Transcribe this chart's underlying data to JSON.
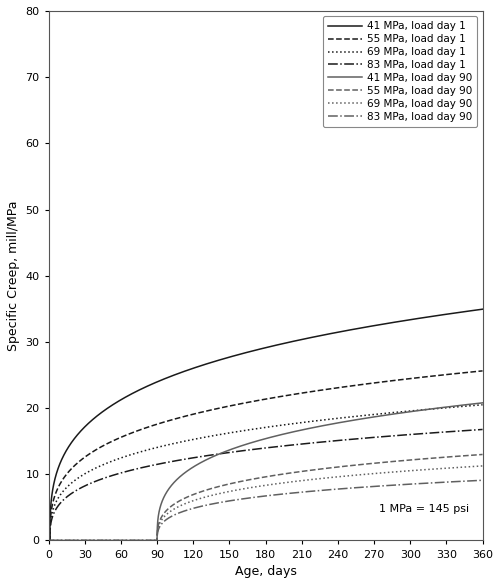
{
  "xlabel": "Age, days",
  "ylabel": "Specific Creep, mill/MPa",
  "xlim": [
    0,
    360
  ],
  "ylim": [
    0,
    80
  ],
  "xticks": [
    0,
    30,
    60,
    90,
    120,
    150,
    180,
    210,
    240,
    270,
    300,
    330,
    360
  ],
  "yticks": [
    0,
    10,
    20,
    30,
    40,
    50,
    60,
    70,
    80
  ],
  "annotation": "1 MPa = 145 psi",
  "curves": [
    {
      "label": "41 MPa, load day 1",
      "load_day": 1,
      "A": 75.0,
      "p": 0.35,
      "B": 0.08,
      "color": "#1a1a1a",
      "linestyle": "-",
      "linewidth": 1.1
    },
    {
      "label": "55 MPa, load day 1",
      "load_day": 1,
      "A": 55.0,
      "p": 0.35,
      "B": 0.08,
      "color": "#1a1a1a",
      "linestyle": "--",
      "linewidth": 1.1
    },
    {
      "label": "69 MPa, load day 1",
      "load_day": 1,
      "A": 44.0,
      "p": 0.35,
      "B": 0.08,
      "color": "#1a1a1a",
      "linestyle": ":",
      "linewidth": 1.1
    },
    {
      "label": "83 MPa, load day 1",
      "load_day": 1,
      "A": 36.0,
      "p": 0.35,
      "B": 0.08,
      "color": "#1a1a1a",
      "linestyle": "-.",
      "linewidth": 1.1
    },
    {
      "label": "41 MPa, load day 90",
      "load_day": 90,
      "A": 48.0,
      "p": 0.35,
      "B": 0.08,
      "color": "#606060",
      "linestyle": "-",
      "linewidth": 1.1
    },
    {
      "label": "55 MPa, load day 90",
      "load_day": 90,
      "A": 30.0,
      "p": 0.35,
      "B": 0.08,
      "color": "#606060",
      "linestyle": "--",
      "linewidth": 1.1
    },
    {
      "label": "69 MPa, load day 90",
      "load_day": 90,
      "A": 26.0,
      "p": 0.35,
      "B": 0.08,
      "color": "#606060",
      "linestyle": ":",
      "linewidth": 1.1
    },
    {
      "label": "83 MPa, load day 90",
      "load_day": 90,
      "A": 21.0,
      "p": 0.35,
      "B": 0.08,
      "color": "#606060",
      "linestyle": "-.",
      "linewidth": 1.1
    }
  ],
  "background_color": "#ffffff",
  "legend_fontsize": 7.5,
  "axis_fontsize": 9,
  "tick_fontsize": 8,
  "figsize": [
    5.0,
    5.85
  ],
  "dpi": 100
}
